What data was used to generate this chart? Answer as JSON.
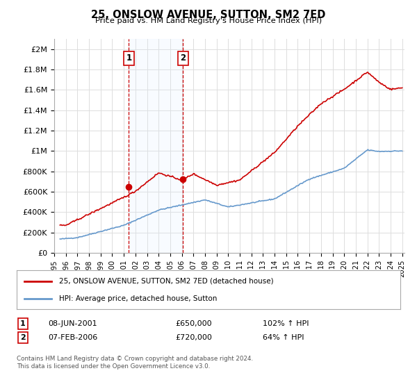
{
  "title": "25, ONSLOW AVENUE, SUTTON, SM2 7ED",
  "subtitle": "Price paid vs. HM Land Registry's House Price Index (HPI)",
  "ylabel_ticks": [
    "£0",
    "£200K",
    "£400K",
    "£600K",
    "£800K",
    "£1M",
    "£1.2M",
    "£1.4M",
    "£1.6M",
    "£1.8M",
    "£2M"
  ],
  "ytick_values": [
    0,
    200000,
    400000,
    600000,
    800000,
    1000000,
    1200000,
    1400000,
    1600000,
    1800000,
    2000000
  ],
  "ylim": [
    0,
    2100000
  ],
  "xlim_start": 1995.5,
  "xlim_end": 2025.2,
  "xtick_labels": [
    "1995",
    "1996",
    "1997",
    "1998",
    "1999",
    "2000",
    "2001",
    "2002",
    "2003",
    "2004",
    "2005",
    "2006",
    "2007",
    "2008",
    "2009",
    "2010",
    "2011",
    "2012",
    "2013",
    "2014",
    "2015",
    "2016",
    "2017",
    "2018",
    "2019",
    "2020",
    "2021",
    "2022",
    "2023",
    "2024",
    "2025"
  ],
  "sale1_x": 2001.44,
  "sale1_y": 650000,
  "sale1_label": "1",
  "sale1_date": "08-JUN-2001",
  "sale1_price": "£650,000",
  "sale1_hpi": "102% ↑ HPI",
  "sale2_x": 2006.1,
  "sale2_y": 720000,
  "sale2_label": "2",
  "sale2_date": "07-FEB-2006",
  "sale2_price": "£720,000",
  "sale2_hpi": "64% ↑ HPI",
  "red_line_color": "#cc0000",
  "blue_line_color": "#6699cc",
  "marker_color": "#cc0000",
  "vline_color": "#cc0000",
  "shade_color": "#ddeeff",
  "grid_color": "#dddddd",
  "background_color": "#ffffff",
  "legend_label_red": "25, ONSLOW AVENUE, SUTTON, SM2 7ED (detached house)",
  "legend_label_blue": "HPI: Average price, detached house, Sutton",
  "footnote": "Contains HM Land Registry data © Crown copyright and database right 2024.\nThis data is licensed under the Open Government Licence v3.0."
}
